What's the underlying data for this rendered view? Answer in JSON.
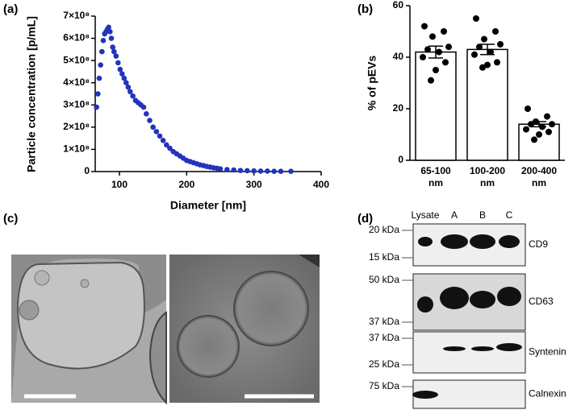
{
  "panel_labels": [
    "(a)",
    "(b)",
    "(c)",
    "(d)"
  ],
  "chart_data": [
    {
      "type": "scatter",
      "xlabel": "Diameter [nm]",
      "ylabel": "Particle concentration [p/mL]",
      "color": "#2233bb",
      "x": [
        66,
        68,
        70,
        72,
        74,
        76,
        78,
        80,
        82,
        84,
        86,
        88,
        90,
        92,
        95,
        98,
        101,
        104,
        107,
        110,
        113,
        116,
        120,
        124,
        128,
        132,
        136,
        140,
        145,
        150,
        155,
        160,
        165,
        170,
        175,
        180,
        185,
        190,
        195,
        200,
        205,
        210,
        215,
        220,
        225,
        230,
        235,
        240,
        245,
        250,
        260,
        270,
        280,
        290,
        300,
        310,
        320,
        330,
        340,
        355
      ],
      "values": [
        290000000,
        350000000,
        420000000,
        480000000,
        540000000,
        590000000,
        620000000,
        630000000,
        640000000,
        650000000,
        630000000,
        600000000,
        560000000,
        540000000,
        520000000,
        490000000,
        460000000,
        440000000,
        420000000,
        400000000,
        380000000,
        360000000,
        340000000,
        320000000,
        310000000,
        300000000,
        290000000,
        260000000,
        230000000,
        200000000,
        180000000,
        160000000,
        140000000,
        120000000,
        105000000,
        90000000,
        80000000,
        70000000,
        60000000,
        50000000,
        45000000,
        40000000,
        35000000,
        30000000,
        27000000,
        23000000,
        20000000,
        17000000,
        15000000,
        12000000,
        9000000,
        7000000,
        5000000,
        4000000,
        3000000,
        2000000,
        2000000,
        1000000,
        1000000,
        1000000
      ],
      "xlim": [
        64,
        400
      ],
      "xticks": [
        100,
        200,
        300,
        400
      ],
      "ylim": [
        0,
        700000000
      ],
      "yticks": [
        0,
        {
          "value": 100000000,
          "label": "1×10⁸"
        },
        {
          "value": 200000000,
          "label": "2×10⁸"
        },
        {
          "value": 300000000,
          "label": "3×10⁸"
        },
        {
          "value": 400000000,
          "label": "4×10⁸"
        },
        {
          "value": 500000000,
          "label": "5×10⁸"
        },
        {
          "value": 600000000,
          "label": "6×10⁸"
        },
        {
          "value": 700000000,
          "label": "7×10⁸"
        }
      ]
    },
    {
      "type": "bar",
      "ylabel": "% of pEVs",
      "color": "#ffffff",
      "categories": [
        "65-100 nm",
        "100-200 nm",
        "200-400 nm"
      ],
      "values": [
        42,
        43,
        14
      ],
      "errors": [
        2.3,
        2,
        1
      ],
      "points": [
        [
          52,
          50,
          48,
          44,
          43,
          42,
          40,
          38,
          35,
          31
        ],
        [
          55,
          50,
          47,
          45,
          44,
          42,
          41,
          38,
          37,
          36
        ],
        [
          20,
          17,
          15,
          14,
          14,
          13,
          12,
          11,
          10,
          8
        ]
      ],
      "ylim": [
        0,
        60
      ],
      "yticks": [
        0,
        20,
        40,
        60
      ]
    }
  ],
  "blot": {
    "lanes": [
      "Lysate",
      "A",
      "B",
      "C"
    ],
    "rows": [
      {
        "protein": "CD9",
        "markers": [
          "20 kDa",
          "15 kDa"
        ]
      },
      {
        "protein": "CD63",
        "markers": [
          "50 kDa",
          "37 kDa"
        ]
      },
      {
        "protein": "Syntenin",
        "markers": [
          "37 kDa",
          "25 kDa"
        ]
      },
      {
        "protein": "Calnexin",
        "markers": [
          "75 kDa"
        ]
      }
    ]
  }
}
